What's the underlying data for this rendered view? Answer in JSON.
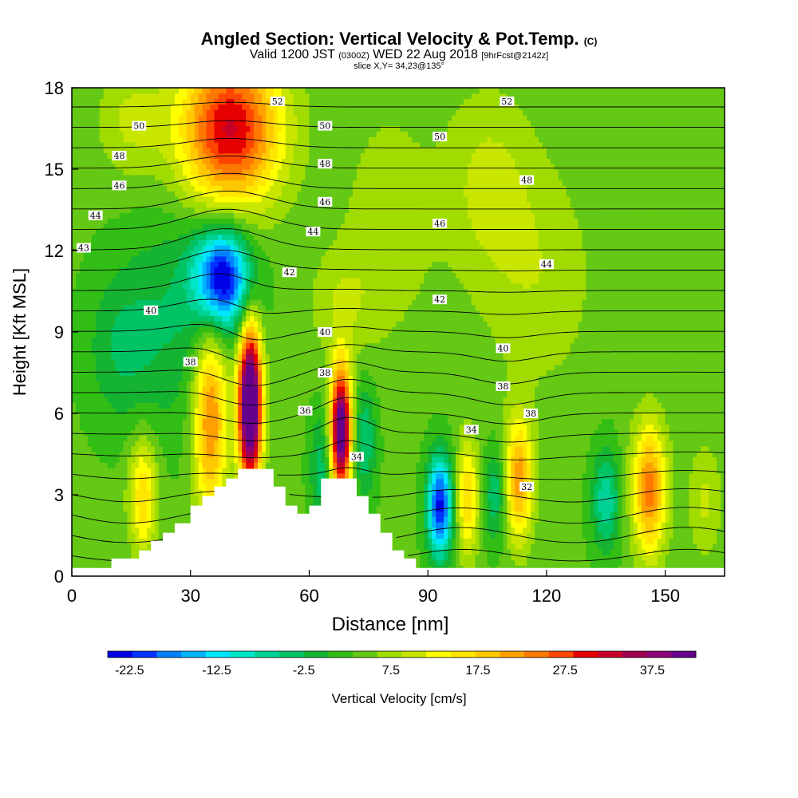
{
  "header": {
    "title_main": "Angled Section: Vertical Velocity & Pot.Temp.",
    "title_unit": "(C)",
    "valid_prefix": "Valid 1200 JST",
    "valid_utc": "(0300Z)",
    "valid_date": "WED 22 Aug 2018",
    "forecast": "[9hrFcst@2142z]",
    "slice": "slice X,Y= 34,23@135°"
  },
  "colors": {
    "contour": "#000000",
    "terrain": "#ffffff",
    "palette": [
      "#0000e6",
      "#0033ff",
      "#0080ff",
      "#00b3ff",
      "#00e6ff",
      "#00e6c8",
      "#00d296",
      "#00c364",
      "#14b432",
      "#32be14",
      "#64c814",
      "#a0dc00",
      "#c8e600",
      "#ffff00",
      "#ffe600",
      "#ffc800",
      "#ffa000",
      "#ff7800",
      "#ff4600",
      "#e60000",
      "#c80028",
      "#a00050",
      "#8c0078",
      "#64008c"
    ]
  },
  "chart_data": {
    "type": "heatmap",
    "xlabel": "Distance [nm]",
    "ylabel": "Height [Kft MSL]",
    "xlim": [
      0,
      165
    ],
    "ylim": [
      0,
      18
    ],
    "xticks": [
      0,
      30,
      60,
      90,
      120,
      150
    ],
    "yticks": [
      0,
      3,
      6,
      9,
      12,
      15,
      18
    ],
    "colorbar": {
      "label": "Vertical Velocity [cm/s]",
      "min": -25,
      "max": 42.5,
      "step": 2.5,
      "tick_labels": [
        "-22.5",
        "-12.5",
        "-2.5",
        "7.5",
        "17.5",
        "27.5",
        "37.5"
      ]
    },
    "background_velocity": 0.5,
    "velocity_features": [
      {
        "x": 40,
        "y": 16.5,
        "amp": 25,
        "sx": 9,
        "sy": 2.0
      },
      {
        "x": 15,
        "y": 16.8,
        "amp": 5,
        "sx": 6,
        "sy": 1.5
      },
      {
        "x": 38,
        "y": 11.0,
        "amp": -26,
        "sx": 5,
        "sy": 1.3
      },
      {
        "x": 25,
        "y": 9.5,
        "amp": -5,
        "sx": 8,
        "sy": 3.0
      },
      {
        "x": 35,
        "y": 5.8,
        "amp": 18,
        "sx": 3,
        "sy": 2.5
      },
      {
        "x": 45,
        "y": 6.3,
        "amp": 45,
        "sx": 2,
        "sy": 2.0
      },
      {
        "x": 68,
        "y": 5.4,
        "amp": 38,
        "sx": 1.8,
        "sy": 1.6
      },
      {
        "x": 63,
        "y": 4.0,
        "amp": -7,
        "sx": 2.0,
        "sy": 1.5
      },
      {
        "x": 74,
        "y": 5.0,
        "amp": -8,
        "sx": 2.0,
        "sy": 1.5
      },
      {
        "x": 18,
        "y": 3.0,
        "amp": 12,
        "sx": 2.5,
        "sy": 1.5
      },
      {
        "x": 93,
        "y": 2.6,
        "amp": -24,
        "sx": 2.2,
        "sy": 1.3
      },
      {
        "x": 100,
        "y": 2.9,
        "amp": 12,
        "sx": 2.0,
        "sy": 1.5
      },
      {
        "x": 113,
        "y": 3.6,
        "amp": 16,
        "sx": 2.5,
        "sy": 1.6
      },
      {
        "x": 107,
        "y": 3.0,
        "amp": -8,
        "sx": 2.0,
        "sy": 1.2
      },
      {
        "x": 135,
        "y": 2.8,
        "amp": -10,
        "sx": 2.5,
        "sy": 1.3
      },
      {
        "x": 146,
        "y": 3.2,
        "amp": 18,
        "sx": 3.0,
        "sy": 1.7
      },
      {
        "x": 160,
        "y": 2.8,
        "amp": 5,
        "sx": 3.0,
        "sy": 1.5
      },
      {
        "x": 105,
        "y": 14.5,
        "amp": 5,
        "sx": 8,
        "sy": 2.5
      },
      {
        "x": 118,
        "y": 11.0,
        "amp": 4,
        "sx": 10,
        "sy": 3.0
      },
      {
        "x": 80,
        "y": 13.0,
        "amp": 4,
        "sx": 8,
        "sy": 3.0
      },
      {
        "x": 68,
        "y": 10.0,
        "amp": 4,
        "sx": 6,
        "sy": 1.5
      },
      {
        "x": 12,
        "y": 8.5,
        "amp": -5,
        "sx": 6,
        "sy": 2.0
      }
    ],
    "terrain": {
      "x": [
        0,
        10,
        10,
        17,
        17,
        20,
        20,
        23,
        23,
        26,
        26,
        30,
        30,
        33,
        33,
        36,
        36,
        39,
        39,
        42,
        42,
        45,
        45,
        51,
        51,
        54,
        54,
        57,
        57,
        60,
        60,
        63,
        63,
        66,
        66,
        72,
        72,
        75,
        75,
        78,
        78,
        81,
        81,
        84,
        84,
        87,
        87,
        165
      ],
      "z": [
        0.3,
        0.3,
        0.65,
        0.65,
        0.95,
        0.95,
        1.3,
        1.3,
        1.6,
        1.6,
        1.95,
        1.95,
        2.6,
        2.6,
        2.95,
        2.95,
        3.3,
        3.3,
        3.6,
        3.6,
        3.95,
        3.95,
        3.95,
        3.95,
        3.3,
        3.3,
        2.6,
        2.6,
        2.3,
        2.3,
        2.6,
        2.6,
        3.6,
        3.6,
        3.6,
        3.6,
        2.95,
        2.95,
        2.3,
        2.3,
        1.6,
        1.6,
        0.95,
        0.95,
        0.65,
        0.65,
        0.3,
        0.3
      ]
    },
    "theta_levels": [
      30,
      31,
      32,
      33,
      34,
      35,
      36,
      37,
      38,
      39,
      40,
      41,
      42,
      43,
      44,
      45,
      46,
      47,
      48,
      49,
      50,
      51,
      52,
      53
    ],
    "theta_labels": [
      {
        "text": "52",
        "x": 52,
        "y": 17.5
      },
      {
        "text": "52",
        "x": 110,
        "y": 17.5
      },
      {
        "text": "50",
        "x": 17,
        "y": 16.6
      },
      {
        "text": "50",
        "x": 64,
        "y": 16.6
      },
      {
        "text": "50",
        "x": 93,
        "y": 16.2
      },
      {
        "text": "48",
        "x": 12,
        "y": 15.5
      },
      {
        "text": "48",
        "x": 64,
        "y": 15.2
      },
      {
        "text": "48",
        "x": 115,
        "y": 14.6
      },
      {
        "text": "46",
        "x": 12,
        "y": 14.4
      },
      {
        "text": "46",
        "x": 64,
        "y": 13.8
      },
      {
        "text": "46",
        "x": 93,
        "y": 13.0
      },
      {
        "text": "44",
        "x": 6,
        "y": 13.3
      },
      {
        "text": "44",
        "x": 61,
        "y": 12.7
      },
      {
        "text": "44",
        "x": 120,
        "y": 11.5
      },
      {
        "text": "43",
        "x": 3,
        "y": 12.1
      },
      {
        "text": "42",
        "x": 55,
        "y": 11.2
      },
      {
        "text": "42",
        "x": 93,
        "y": 10.2
      },
      {
        "text": "40",
        "x": 20,
        "y": 9.8
      },
      {
        "text": "40",
        "x": 64,
        "y": 9.0
      },
      {
        "text": "40",
        "x": 109,
        "y": 8.4
      },
      {
        "text": "38",
        "x": 30,
        "y": 7.9
      },
      {
        "text": "38",
        "x": 64,
        "y": 7.5
      },
      {
        "text": "38",
        "x": 109,
        "y": 7.0
      },
      {
        "text": "38",
        "x": 116,
        "y": 6.0
      },
      {
        "text": "36",
        "x": 59,
        "y": 6.1
      },
      {
        "text": "34",
        "x": 72,
        "y": 4.4
      },
      {
        "text": "34",
        "x": 101,
        "y": 5.4
      },
      {
        "text": "32",
        "x": 115,
        "y": 3.3
      }
    ]
  }
}
